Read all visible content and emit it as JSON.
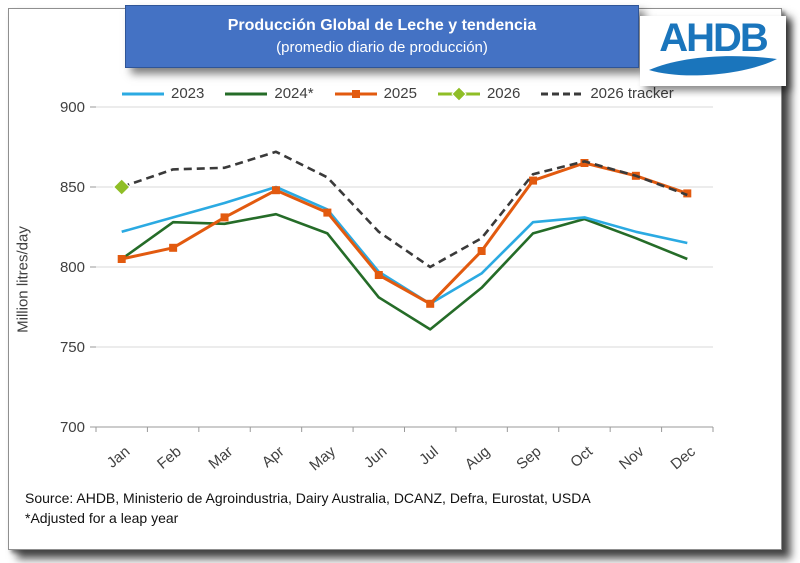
{
  "banner": {
    "title": "Producción Global de Leche y tendencia",
    "subtitle": "(promedio diario de producción)",
    "bg_color": "#4472C4"
  },
  "logo": {
    "text": "AHDB",
    "color": "#1A75BC"
  },
  "footer": {
    "source": "Source: AHDB, Ministerio de Agroindustria, Dairy Australia, DCANZ, Defra, Eurostat, USDA",
    "note": "*Adjusted for a leap year"
  },
  "chart_data": {
    "type": "line",
    "title": "Producción Global de Leche y tendencia (promedio diario de producción)",
    "xlabel": "",
    "ylabel": "Million litres/day",
    "ylim": [
      700,
      900
    ],
    "yticks": [
      700,
      750,
      800,
      850,
      900
    ],
    "grid": true,
    "legend_position": "top",
    "categories": [
      "Jan",
      "Feb",
      "Mar",
      "Apr",
      "May",
      "Jun",
      "Jul",
      "Aug",
      "Sep",
      "Oct",
      "Nov",
      "Dec"
    ],
    "series": [
      {
        "name": "2023",
        "color": "#2BAAE2",
        "style": "solid",
        "marker": "none",
        "values": [
          822,
          831,
          840,
          850,
          836,
          797,
          777,
          796,
          828,
          831,
          822,
          815
        ]
      },
      {
        "name": "2024*",
        "color": "#256C28",
        "style": "solid",
        "marker": "none",
        "values": [
          805,
          828,
          827,
          833,
          821,
          781,
          761,
          787,
          821,
          830,
          818,
          805
        ]
      },
      {
        "name": "2025",
        "color": "#E25A0F",
        "style": "solid",
        "marker": "square",
        "values": [
          805,
          812,
          831,
          848,
          834,
          795,
          777,
          810,
          854,
          865,
          857,
          846
        ]
      },
      {
        "name": "2026",
        "color": "#8FBE26",
        "style": "solid",
        "marker": "diamond",
        "values": [
          850,
          null,
          null,
          null,
          null,
          null,
          null,
          null,
          null,
          null,
          null,
          null
        ]
      },
      {
        "name": "2026 tracker",
        "color": "#3A3A3A",
        "style": "dashed",
        "marker": "none",
        "values": [
          850,
          861,
          862,
          872,
          856,
          822,
          800,
          818,
          858,
          866,
          857,
          845
        ]
      }
    ],
    "colors": {
      "gridline": "#D9D9D9",
      "axis": "#9A9A9A",
      "tick_text": "#404040"
    }
  }
}
